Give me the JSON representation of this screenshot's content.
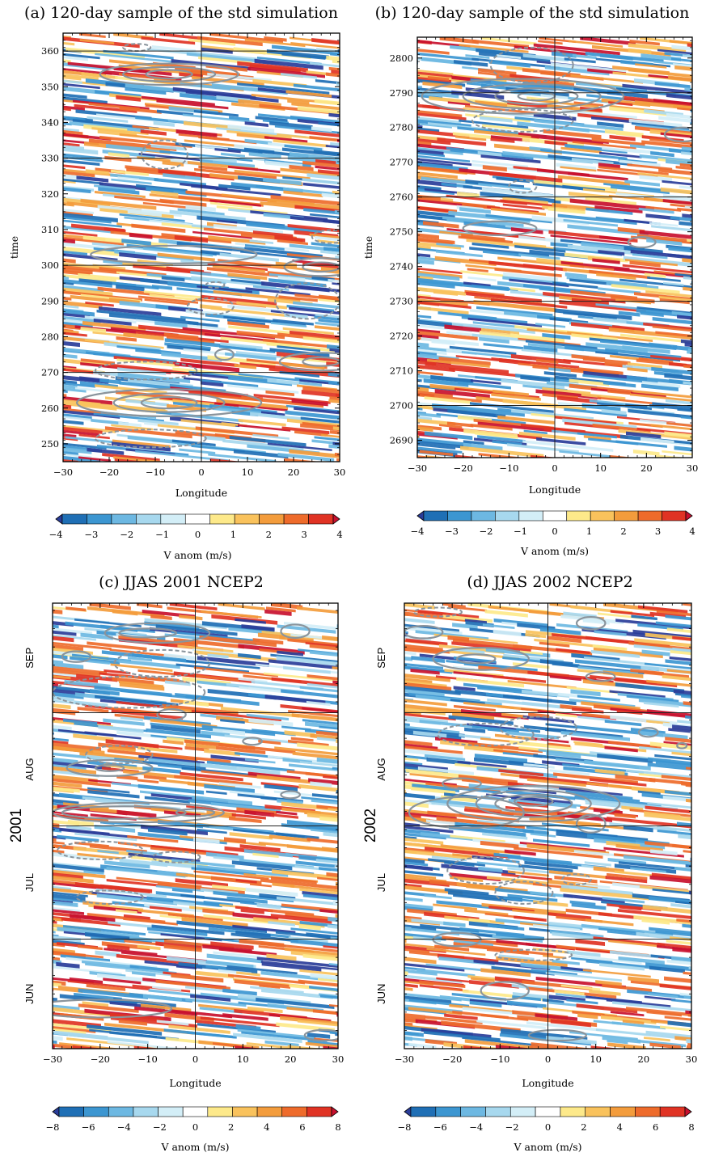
{
  "chart_data": [
    {
      "id": "a",
      "type": "heatmap",
      "title": "(a) 120-day sample of the std simulation",
      "xlabel": "Longitude",
      "ylabel": "time",
      "xlim": [
        -30,
        30
      ],
      "ylim": [
        245,
        365
      ],
      "xticks": [
        -30,
        -20,
        -10,
        0,
        10,
        20,
        30
      ],
      "yticks": [
        250,
        260,
        270,
        280,
        290,
        300,
        310,
        320,
        330,
        340,
        350,
        360
      ],
      "reference_lines": {
        "x": [
          0
        ],
        "y": [
          270,
          300,
          330,
          360
        ]
      },
      "shading_variable": "V anom (m/s)",
      "colorbar": {
        "label": "V anom (m/s)",
        "ticks": [
          -4,
          -3,
          -2,
          -1,
          0,
          1,
          2,
          3,
          4
        ],
        "range": [
          -4,
          4
        ]
      },
      "contours": {
        "solid": [
          {
            "x": -7,
            "y": 353.5,
            "rx": 15,
            "ry": 3
          },
          {
            "x": -7,
            "y": 353.5,
            "rx": 10,
            "ry": 2
          },
          {
            "x": -7,
            "y": 353.5,
            "rx": 5,
            "ry": 1.2
          },
          {
            "x": -7,
            "y": 261.5,
            "rx": 20,
            "ry": 3.8
          },
          {
            "x": -7,
            "y": 261.5,
            "rx": 12,
            "ry": 2.6
          },
          {
            "x": -7,
            "y": 261.5,
            "rx": 6,
            "ry": 1.6
          },
          {
            "x": -6,
            "y": 303,
            "rx": 18,
            "ry": 2.5
          },
          {
            "x": 26,
            "y": 299.5,
            "rx": 8,
            "ry": 2.5
          },
          {
            "x": 26,
            "y": 299.5,
            "rx": 4,
            "ry": 1.3
          },
          {
            "x": 26,
            "y": 273,
            "rx": 9,
            "ry": 2.5
          },
          {
            "x": 26,
            "y": 273,
            "rx": 4,
            "ry": 1.2
          },
          {
            "x": 5,
            "y": 275,
            "rx": 2,
            "ry": 1.5
          }
        ],
        "dashed": [
          {
            "x": -12,
            "y": 270.5,
            "rx": 11,
            "ry": 2.5
          },
          {
            "x": -11,
            "y": 251.5,
            "rx": 12,
            "ry": 2.5
          },
          {
            "x": -8,
            "y": 331,
            "rx": 5,
            "ry": 4
          },
          {
            "x": 2,
            "y": 288.5,
            "rx": 5,
            "ry": 2.3
          },
          {
            "x": 23,
            "y": 290,
            "rx": 7,
            "ry": 5
          },
          {
            "x": 28,
            "y": 308,
            "rx": 4,
            "ry": 1.8
          },
          {
            "x": 3,
            "y": 294.5,
            "rx": 2,
            "ry": 0.8
          },
          {
            "x": -14,
            "y": 361,
            "rx": 3,
            "ry": 1
          }
        ]
      }
    },
    {
      "id": "b",
      "type": "heatmap",
      "title": "(b) 120-day sample of the std simulation",
      "xlabel": "Longitude",
      "ylabel": "time",
      "xlim": [
        -30,
        30
      ],
      "ylim": [
        2685,
        2806
      ],
      "xticks": [
        -30,
        -20,
        -10,
        0,
        10,
        20,
        30
      ],
      "yticks": [
        2690,
        2700,
        2710,
        2720,
        2730,
        2740,
        2750,
        2760,
        2770,
        2780,
        2790,
        2800
      ],
      "reference_lines": {
        "x": [
          0
        ],
        "y": [
          2700,
          2730,
          2760,
          2790
        ]
      },
      "shading_variable": "V anom (m/s)",
      "colorbar": {
        "label": "V anom (m/s)",
        "ticks": [
          -4,
          -3,
          -2,
          -1,
          0,
          1,
          2,
          3,
          4
        ],
        "range": [
          -4,
          4
        ]
      },
      "contours": {
        "solid": [
          {
            "x": -7,
            "y": 2789,
            "rx": 22,
            "ry": 5
          },
          {
            "x": -5,
            "y": 2789,
            "rx": 15,
            "ry": 3.5
          },
          {
            "x": -4,
            "y": 2789,
            "rx": 9,
            "ry": 2.3
          },
          {
            "x": -4,
            "y": 2789,
            "rx": 4,
            "ry": 1.2
          },
          {
            "x": -12,
            "y": 2751,
            "rx": 8,
            "ry": 2
          },
          {
            "x": 19,
            "y": 2747,
            "rx": 3,
            "ry": 1.5
          },
          {
            "x": 28,
            "y": 2778,
            "rx": 4,
            "ry": 2
          }
        ],
        "dashed": [
          {
            "x": -5,
            "y": 2798,
            "rx": 9,
            "ry": 5
          },
          {
            "x": -7,
            "y": 2782,
            "rx": 11,
            "ry": 3.2
          },
          {
            "x": -7,
            "y": 2763,
            "rx": 3,
            "ry": 1.8
          }
        ]
      }
    },
    {
      "id": "c",
      "type": "heatmap",
      "title": "(c) JJAS 2001 NCEP2",
      "xlabel": "Longitude",
      "ylabel": "2001",
      "xlim": [
        -30,
        30
      ],
      "time_axis": "June to September 2001",
      "xticks": [
        -30,
        -20,
        -10,
        0,
        10,
        20,
        30
      ],
      "month_labels": [
        "JUN",
        "JUL",
        "AUG",
        "SEP"
      ],
      "reference_lines": {
        "x": [
          0
        ],
        "month_boundaries": [
          "Jul 1",
          "Aug 1",
          "Sep 1"
        ]
      },
      "shading_variable": "V anom (m/s)",
      "colorbar": {
        "label": "V anom (m/s)",
        "ticks": [
          -8,
          -6,
          -4,
          -2,
          0,
          2,
          4,
          6,
          8
        ],
        "range": [
          -8,
          8
        ]
      },
      "contours": {
        "solid": [
          {
            "x": -12,
            "y": 0.53,
            "rx": 18,
            "ry": 0.022
          },
          {
            "x": -15,
            "y": 0.53,
            "rx": 13,
            "ry": 0.014
          },
          {
            "x": 0,
            "y": 0.53,
            "rx": 4,
            "ry": 0.008
          },
          {
            "x": -18,
            "y": 0.63,
            "rx": 9,
            "ry": 0.018
          },
          {
            "x": -18,
            "y": 0.63,
            "rx": 3,
            "ry": 0.007
          },
          {
            "x": -8,
            "y": 0.933,
            "rx": 11,
            "ry": 0.022
          },
          {
            "x": -10,
            "y": 0.933,
            "rx": 6,
            "ry": 0.01
          },
          {
            "x": -25,
            "y": 0.88,
            "rx": 3,
            "ry": 0.012
          },
          {
            "x": -5,
            "y": 0.75,
            "rx": 3,
            "ry": 0.012
          },
          {
            "x": 12,
            "y": 0.69,
            "rx": 2,
            "ry": 0.008
          },
          {
            "x": 21,
            "y": 0.937,
            "rx": 3,
            "ry": 0.015
          },
          {
            "x": 20,
            "y": 0.57,
            "rx": 2,
            "ry": 0.008
          },
          {
            "x": -20,
            "y": 0.09,
            "rx": 15,
            "ry": 0.02
          },
          {
            "x": 27,
            "y": 0.03,
            "rx": 4,
            "ry": 0.012
          }
        ],
        "dashed": [
          {
            "x": -14,
            "y": 0.8,
            "rx": 16,
            "ry": 0.035
          },
          {
            "x": -7,
            "y": 0.865,
            "rx": 10,
            "ry": 0.03
          },
          {
            "x": -20,
            "y": 0.445,
            "rx": 9,
            "ry": 0.02
          },
          {
            "x": -16,
            "y": 0.66,
            "rx": 7,
            "ry": 0.02
          },
          {
            "x": -18,
            "y": 0.34,
            "rx": 7,
            "ry": 0.015
          },
          {
            "x": -4,
            "y": 0.43,
            "rx": 5,
            "ry": 0.012
          }
        ]
      }
    },
    {
      "id": "d",
      "type": "heatmap",
      "title": "(d) JJAS 2002 NCEP2",
      "xlabel": "Longitude",
      "ylabel": "2002",
      "xlim": [
        -30,
        30
      ],
      "time_axis": "June to September 2002",
      "xticks": [
        -30,
        -20,
        -10,
        0,
        10,
        20,
        30
      ],
      "month_labels": [
        "JUN",
        "JUL",
        "AUG",
        "SEP"
      ],
      "reference_lines": {
        "x": [
          0
        ],
        "month_boundaries": [
          "Jul 1",
          "Aug 1",
          "Sep 1"
        ]
      },
      "shading_variable": "V anom (m/s)",
      "colorbar": {
        "label": "V anom (m/s)",
        "ticks": [
          -8,
          -6,
          -4,
          -2,
          0,
          2,
          4,
          6,
          8
        ],
        "range": [
          -8,
          8
        ]
      },
      "contours": {
        "solid": [
          {
            "x": -3,
            "y": 0.55,
            "rx": 18,
            "ry": 0.04
          },
          {
            "x": -3,
            "y": 0.55,
            "rx": 12,
            "ry": 0.03
          },
          {
            "x": -3,
            "y": 0.55,
            "rx": 8,
            "ry": 0.02
          },
          {
            "x": -3,
            "y": 0.555,
            "rx": 4,
            "ry": 0.01
          },
          {
            "x": -17,
            "y": 0.53,
            "rx": 12,
            "ry": 0.035
          },
          {
            "x": -18,
            "y": 0.595,
            "rx": 4,
            "ry": 0.012
          },
          {
            "x": -14,
            "y": 0.875,
            "rx": 10,
            "ry": 0.025
          },
          {
            "x": -15,
            "y": 0.875,
            "rx": 4,
            "ry": 0.01
          },
          {
            "x": -26,
            "y": 0.935,
            "rx": 4,
            "ry": 0.014
          },
          {
            "x": 9,
            "y": 0.505,
            "rx": 3,
            "ry": 0.02
          },
          {
            "x": -9,
            "y": 0.13,
            "rx": 5,
            "ry": 0.02
          },
          {
            "x": 9,
            "y": 0.955,
            "rx": 3,
            "ry": 0.014
          },
          {
            "x": 11,
            "y": 0.835,
            "rx": 3,
            "ry": 0.01
          },
          {
            "x": 21,
            "y": 0.71,
            "rx": 2,
            "ry": 0.01
          },
          {
            "x": 28,
            "y": 0.68,
            "rx": 1,
            "ry": 0.006
          },
          {
            "x": -19,
            "y": 0.245,
            "rx": 5,
            "ry": 0.015
          },
          {
            "x": 2,
            "y": 0.03,
            "rx": 6,
            "ry": 0.012
          }
        ],
        "dashed": [
          {
            "x": -2,
            "y": 0.72,
            "rx": 8,
            "ry": 0.025
          },
          {
            "x": -13,
            "y": 0.705,
            "rx": 10,
            "ry": 0.025
          },
          {
            "x": -13,
            "y": 0.4,
            "rx": 8,
            "ry": 0.03
          },
          {
            "x": -5,
            "y": 0.35,
            "rx": 6,
            "ry": 0.025
          },
          {
            "x": 6,
            "y": 0.38,
            "rx": 3,
            "ry": 0.012
          },
          {
            "x": -3,
            "y": 0.21,
            "rx": 8,
            "ry": 0.012
          },
          {
            "x": -23,
            "y": 0.98,
            "rx": 5,
            "ry": 0.01
          }
        ]
      }
    }
  ],
  "colors": {
    "negative": [
      "#2a3d99",
      "#1f6fb5",
      "#3c96d1",
      "#6db8e2",
      "#a7d8ee",
      "#d3eef7"
    ],
    "positive": [
      "#fde98a",
      "#f9c25c",
      "#f39c3c",
      "#ee6b2b",
      "#e03324",
      "#c8102e"
    ],
    "contour": "#8a949c",
    "reference_line": "#222222"
  }
}
